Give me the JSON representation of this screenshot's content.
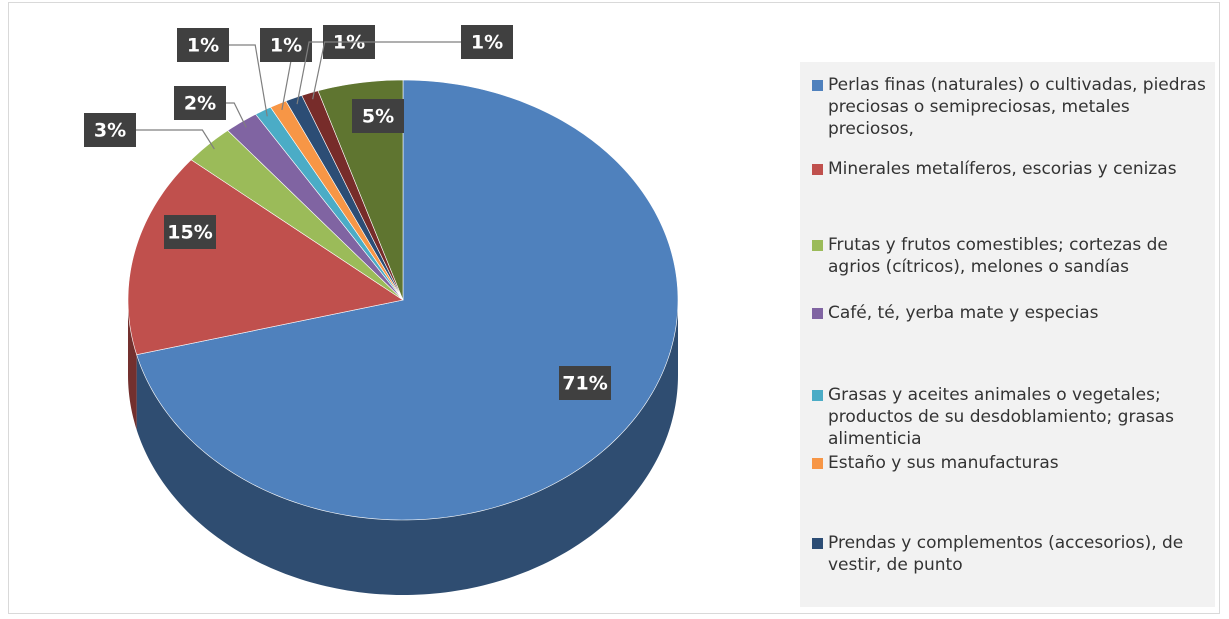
{
  "chart_data": {
    "type": "pie",
    "categories": [
      "Perlas finas (naturales) o cultivadas, piedras preciosas o semipreciosas, metales preciosos,",
      "Minerales metalíferos, escorias y cenizas",
      "Frutas y frutos comestibles; cortezas de agrios (cítricos), melones o sandías",
      "Café, té, yerba mate y especias",
      " Grasas y aceites animales o vegetales; productos de su desdoblamiento; grasas alimenticia",
      "Estaño y sus manufacturas",
      "Prendas y complementos (accesorios), de vestir, de punto",
      null,
      null
    ],
    "values": [
      71,
      15,
      3,
      2,
      1,
      1,
      1,
      1,
      5
    ],
    "value_labels": [
      "71%",
      "15%",
      "3%",
      "2%",
      "1%",
      "1%",
      "1%",
      "1%",
      "5%"
    ],
    "colors": [
      "#4f81bd",
      "#c0504d",
      "#9bbb59",
      "#8064a2",
      "#4bacc6",
      "#f79646",
      "#2c4d75",
      "#772c2a",
      "#5f7530"
    ],
    "legend": "right"
  }
}
